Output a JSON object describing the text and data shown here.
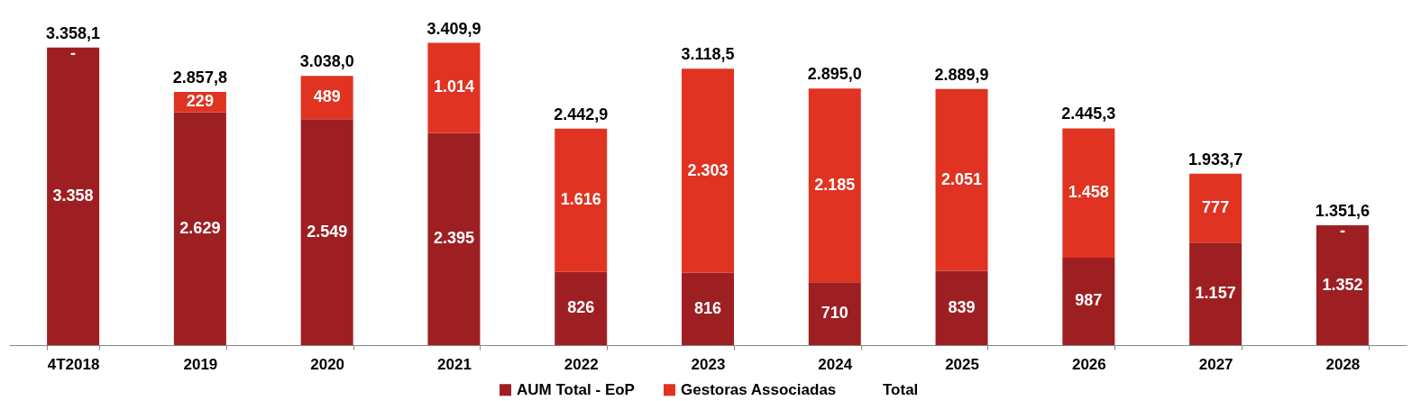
{
  "chart_data": {
    "type": "bar",
    "stacked": true,
    "categories": [
      "4T2018",
      "2019",
      "2020",
      "2021",
      "2022",
      "2023",
      "2024",
      "2025",
      "2026",
      "2027",
      "2028"
    ],
    "series": [
      {
        "name": "AUM Total - EoP",
        "color": "#9e1f22",
        "values": [
          3358.1,
          2629,
          2549,
          2395.4,
          826.4,
          815.8,
          710,
          838.9,
          987.1,
          1156.7,
          1351.6
        ],
        "value_labels": [
          "3.358",
          "2.629",
          "2.549",
          "2.395",
          "826",
          "816",
          "710",
          "839",
          "987",
          "1.157",
          "1.352"
        ]
      },
      {
        "name": "Gestoras Associadas",
        "color": "#e03321",
        "values": [
          0,
          228.8,
          489,
          1014.5,
          1616.5,
          2302.7,
          2185,
          2051,
          1458.2,
          777,
          0
        ],
        "value_labels": [
          "-",
          "229",
          "489",
          "1.014",
          "1.616",
          "2.303",
          "2.185",
          "2.051",
          "1.458",
          "777",
          "-"
        ]
      }
    ],
    "totals": [
      "3.358,1",
      "2.857,8",
      "3.038,0",
      "3.409,9",
      "2.442,9",
      "3.118,5",
      "2.895,0",
      "2.889,9",
      "2.445,3",
      "1.933,7",
      "1.351,6"
    ],
    "annotations": [
      "Total"
    ],
    "legend": "bottom"
  }
}
